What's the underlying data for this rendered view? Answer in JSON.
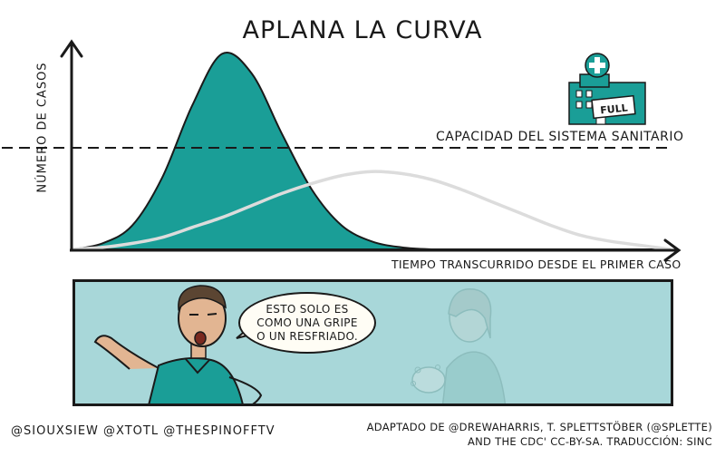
{
  "title": "APLANA LA CURVA",
  "capacity_label": "CAPACIDAD DEL SISTEMA SANITARIO",
  "hospital_sign": "FULL",
  "speech_bubble": {
    "lines": [
      "ESTO SOLO ES",
      "COMO UNA GRIPE",
      "O UN RESFRIADO."
    ]
  },
  "credits": {
    "left": "@SIOUXSIEW @XTOTL @THESPINOFFTV",
    "right_line1": "ADAPTADO DE @DREWAHARRIS, T. SPLETTSTÖBER (@SPLETTE)",
    "right_line2": "AND THE CDC' CC-BY-SA. TRADUCCIÓN: SINC"
  },
  "colors": {
    "teal": "#1a9e97",
    "teal_dark": "#0e7f78",
    "flat_curve": "#dcdcdc",
    "panel": "#a8d7d9"
  },
  "chart_data": {
    "type": "area",
    "title": "APLANA LA CURVA",
    "xlabel": "TIEMPO TRANSCURRIDO DESDE EL PRIMER CASO",
    "ylabel": "NÚMERO DE CASOS",
    "grid": false,
    "series": [
      {
        "values": [
          0,
          3,
          12,
          36,
          72,
          98,
          88,
          58,
          30,
          12,
          4,
          1,
          0,
          0,
          0,
          0,
          0,
          0,
          0,
          0,
          0
        ]
      },
      {
        "values": [
          0,
          1,
          3,
          6,
          11,
          16,
          22,
          28,
          33,
          37,
          39,
          38,
          35,
          30,
          24,
          18,
          12,
          7,
          4,
          2,
          0
        ]
      }
    ],
    "reference_line": {
      "label": "CAPACIDAD DEL SISTEMA SANITARIO",
      "value": 47,
      "style": "dashed"
    }
  }
}
